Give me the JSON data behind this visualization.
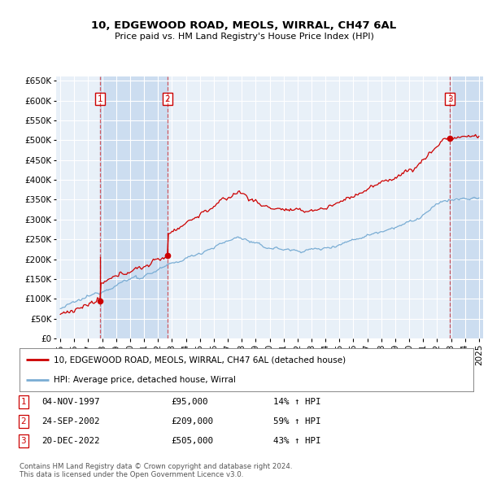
{
  "title": "10, EDGEWOOD ROAD, MEOLS, WIRRAL, CH47 6AL",
  "subtitle": "Price paid vs. HM Land Registry's House Price Index (HPI)",
  "transactions": [
    {
      "year_float": 1997.833,
      "price": 95000,
      "label": "1"
    },
    {
      "year_float": 2002.667,
      "price": 209000,
      "label": "2"
    },
    {
      "year_float": 2022.917,
      "price": 505000,
      "label": "3"
    }
  ],
  "transaction_notes": [
    {
      "label": "1",
      "date": "04-NOV-1997",
      "price": "£95,000",
      "note": "14% ↑ HPI"
    },
    {
      "label": "2",
      "date": "24-SEP-2002",
      "price": "£209,000",
      "note": "59% ↑ HPI"
    },
    {
      "label": "3",
      "date": "20-DEC-2022",
      "price": "£505,000",
      "note": "43% ↑ HPI"
    }
  ],
  "legend_line1": "10, EDGEWOOD ROAD, MEOLS, WIRRAL, CH47 6AL (detached house)",
  "legend_line2": "HPI: Average price, detached house, Wirral",
  "footer": "Contains HM Land Registry data © Crown copyright and database right 2024.\nThis data is licensed under the Open Government Licence v3.0.",
  "red_color": "#cc0000",
  "blue_color": "#7aadd4",
  "shade_color": "#ccddf0",
  "background_plot": "#e8f0f8",
  "background_fig": "#ffffff",
  "grid_color": "#ffffff",
  "ylim": [
    0,
    660000
  ],
  "yticks": [
    0,
    50000,
    100000,
    150000,
    200000,
    250000,
    300000,
    350000,
    400000,
    450000,
    500000,
    550000,
    600000,
    650000
  ],
  "xlim_left": 1994.7,
  "xlim_right": 2025.3
}
